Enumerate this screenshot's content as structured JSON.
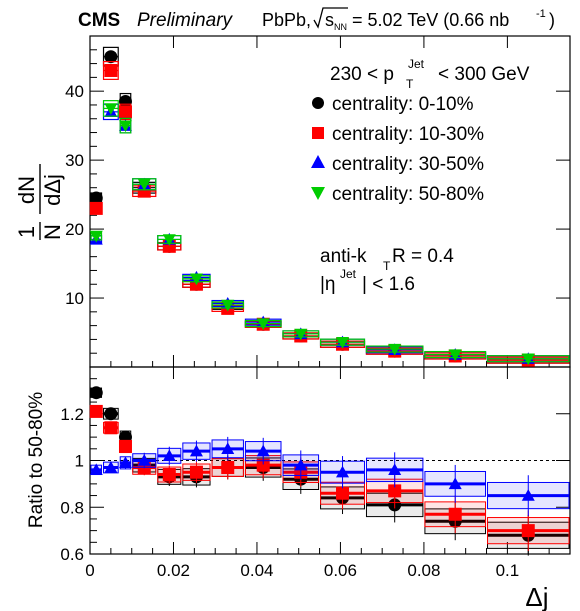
{
  "header": {
    "cms_label": "CMS",
    "preliminary_label": "Preliminary",
    "system_label": "PbPb,",
    "energy_prefix": "s",
    "energy_sub": "NN",
    "energy_value": "= 5.02 TeV (0.66 nb",
    "energy_sup": "-1",
    "energy_close": ")"
  },
  "annotations": {
    "pt_range_low": "230 < p",
    "pt_sub": "T",
    "pt_sup": "Jet",
    "pt_range_high": "< 300 GeV",
    "algo_prefix": "anti-k",
    "algo_sub": "T",
    "algo_suffix": " R = 0.4",
    "eta_prefix": "|η",
    "eta_sup": "Jet",
    "eta_suffix": "| < 1.6"
  },
  "legend": [
    {
      "label": "centrality: 0-10%",
      "color": "#000000",
      "marker": "circle"
    },
    {
      "label": "centrality: 10-30%",
      "color": "#ff0000",
      "marker": "square"
    },
    {
      "label": "centrality: 30-50%",
      "color": "#0000ff",
      "marker": "triangle-up"
    },
    {
      "label": "centrality: 50-80%",
      "color": "#00cc00",
      "marker": "triangle-down"
    }
  ],
  "chart_data": [
    {
      "type": "scatter",
      "panel": "top",
      "ylabel_top": "1",
      "ylabel_n": "N",
      "ylabel_dN": "dN",
      "ylabel_ddj": "dΔj",
      "xlim": [
        0,
        0.115
      ],
      "ylim": [
        0,
        48
      ],
      "yticks": [
        10,
        20,
        30,
        40
      ],
      "x_bins": [
        [
          0.0,
          0.003
        ],
        [
          0.003,
          0.007
        ],
        [
          0.007,
          0.01
        ],
        [
          0.01,
          0.016
        ],
        [
          0.016,
          0.022
        ],
        [
          0.022,
          0.029
        ],
        [
          0.029,
          0.037
        ],
        [
          0.037,
          0.046
        ],
        [
          0.046,
          0.055
        ],
        [
          0.055,
          0.066
        ],
        [
          0.066,
          0.08
        ],
        [
          0.08,
          0.095
        ],
        [
          0.095,
          0.115
        ]
      ],
      "x": [
        0.0015,
        0.005,
        0.0085,
        0.013,
        0.019,
        0.0255,
        0.033,
        0.0415,
        0.0505,
        0.0605,
        0.073,
        0.0875,
        0.105
      ],
      "series": [
        {
          "name": "centrality: 0-10%",
          "values": [
            24.5,
            45.0,
            38.5,
            26.0,
            17.5,
            12.0,
            8.8,
            6.2,
            4.5,
            3.3,
            2.3,
            1.6,
            1.0
          ]
        },
        {
          "name": "centrality: 10-30%",
          "values": [
            23.0,
            43.0,
            37.0,
            25.5,
            17.5,
            12.0,
            8.5,
            6.2,
            4.5,
            3.3,
            2.3,
            1.6,
            1.0
          ]
        },
        {
          "name": "centrality: 30-50%",
          "values": [
            18.5,
            37.0,
            35.0,
            26.5,
            18.5,
            13.0,
            9.2,
            6.5,
            4.8,
            3.6,
            2.5,
            1.8,
            1.2
          ]
        },
        {
          "name": "centrality: 50-80%",
          "values": [
            19.0,
            37.5,
            35.0,
            26.5,
            18.5,
            12.8,
            9.0,
            6.3,
            4.8,
            3.6,
            2.6,
            1.8,
            1.2
          ]
        }
      ]
    },
    {
      "type": "scatter",
      "panel": "bottom",
      "ylabel": "Ratio to 50-80%",
      "xlabel": "Δj",
      "xlim": [
        0,
        0.115
      ],
      "ylim": [
        0.6,
        1.4
      ],
      "reference_line": 1.0,
      "yticks": [
        0.6,
        0.8,
        1.0,
        1.2
      ],
      "ytick_labels": [
        "0.6",
        "0.8",
        "1",
        "1.2"
      ],
      "xticks": [
        0,
        0.02,
        0.04,
        0.06,
        0.08,
        0.1
      ],
      "xtick_labels": [
        "0",
        "0.02",
        "0.04",
        "0.06",
        "0.08",
        "0.1"
      ],
      "series": [
        {
          "name": "centrality: 0-10%",
          "values": [
            1.29,
            1.2,
            1.1,
            0.98,
            0.93,
            0.93,
            0.97,
            0.97,
            0.92,
            0.84,
            0.81,
            0.74,
            0.68
          ]
        },
        {
          "name": "centrality: 10-30%",
          "values": [
            1.21,
            1.14,
            1.06,
            0.97,
            0.94,
            0.95,
            0.97,
            0.98,
            0.95,
            0.86,
            0.87,
            0.77,
            0.7
          ]
        },
        {
          "name": "centrality: 30-50%",
          "values": [
            0.96,
            0.97,
            0.99,
            1.0,
            1.02,
            1.04,
            1.05,
            1.04,
            0.98,
            0.95,
            0.96,
            0.9,
            0.85
          ]
        }
      ]
    }
  ]
}
